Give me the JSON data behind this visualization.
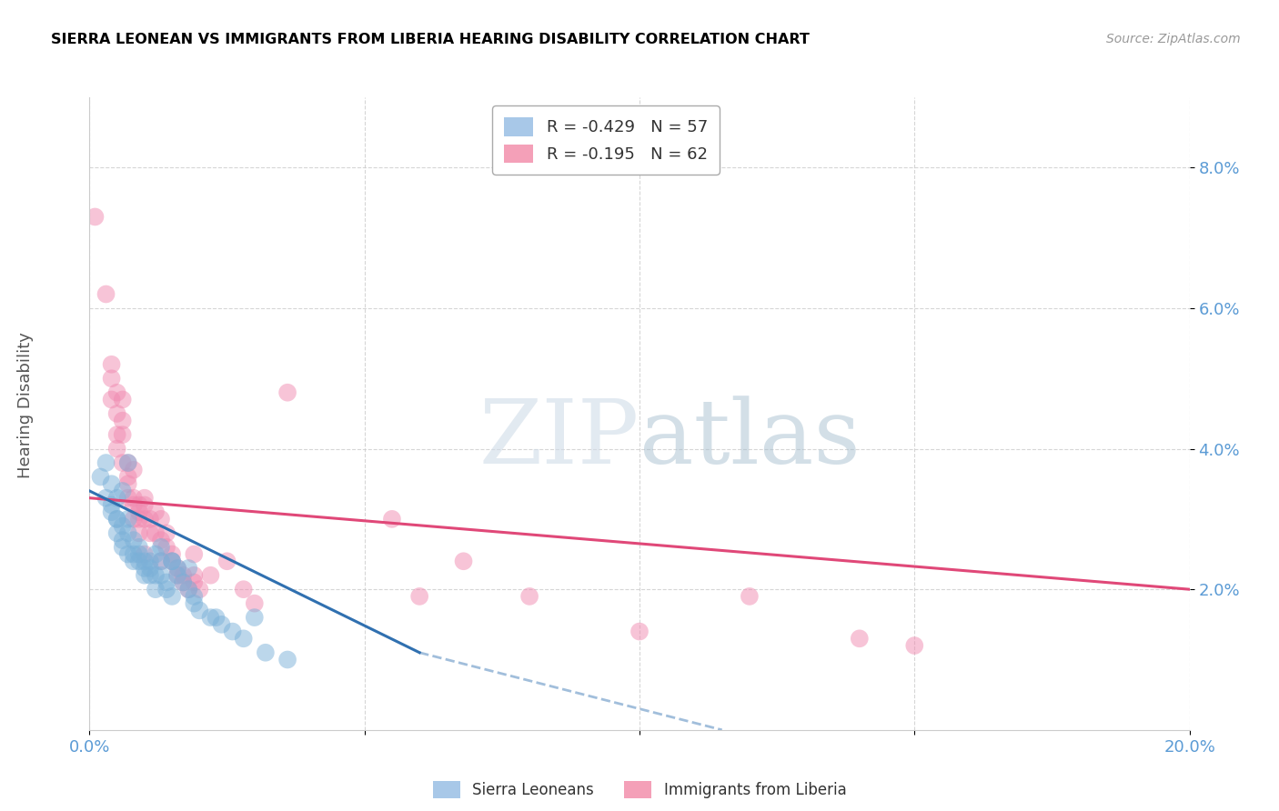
{
  "title": "SIERRA LEONEAN VS IMMIGRANTS FROM LIBERIA HEARING DISABILITY CORRELATION CHART",
  "source": "Source: ZipAtlas.com",
  "ylabel": "Hearing Disability",
  "watermark_zip": "ZIP",
  "watermark_atlas": "atlas",
  "xlim": [
    0.0,
    0.2
  ],
  "ylim": [
    0.0,
    0.09
  ],
  "yticks": [
    0.02,
    0.04,
    0.06,
    0.08
  ],
  "ytick_labels": [
    "2.0%",
    "4.0%",
    "6.0%",
    "8.0%"
  ],
  "xticks": [
    0.0,
    0.05,
    0.1,
    0.15,
    0.2
  ],
  "xtick_labels": [
    "0.0%",
    "",
    "",
    "",
    "20.0%"
  ],
  "legend_entries": [
    {
      "label": "R = -0.429   N = 57",
      "color": "#a8c8e8"
    },
    {
      "label": "R = -0.195   N = 62",
      "color": "#f4a0b8"
    }
  ],
  "legend_bottom": [
    "Sierra Leoneans",
    "Immigrants from Liberia"
  ],
  "blue_color": "#7ab0d8",
  "pink_color": "#f08ab0",
  "blue_line_color": "#3070b0",
  "pink_line_color": "#e04878",
  "blue_scatter": [
    [
      0.002,
      0.036
    ],
    [
      0.003,
      0.038
    ],
    [
      0.003,
      0.033
    ],
    [
      0.004,
      0.035
    ],
    [
      0.004,
      0.032
    ],
    [
      0.004,
      0.031
    ],
    [
      0.005,
      0.03
    ],
    [
      0.005,
      0.033
    ],
    [
      0.005,
      0.028
    ],
    [
      0.005,
      0.03
    ],
    [
      0.006,
      0.027
    ],
    [
      0.006,
      0.026
    ],
    [
      0.006,
      0.034
    ],
    [
      0.006,
      0.029
    ],
    [
      0.007,
      0.028
    ],
    [
      0.007,
      0.03
    ],
    [
      0.007,
      0.025
    ],
    [
      0.007,
      0.038
    ],
    [
      0.008,
      0.027
    ],
    [
      0.008,
      0.025
    ],
    [
      0.008,
      0.024
    ],
    [
      0.009,
      0.026
    ],
    [
      0.009,
      0.025
    ],
    [
      0.009,
      0.024
    ],
    [
      0.01,
      0.022
    ],
    [
      0.01,
      0.023
    ],
    [
      0.01,
      0.024
    ],
    [
      0.011,
      0.022
    ],
    [
      0.011,
      0.024
    ],
    [
      0.011,
      0.023
    ],
    [
      0.012,
      0.02
    ],
    [
      0.012,
      0.022
    ],
    [
      0.012,
      0.025
    ],
    [
      0.013,
      0.026
    ],
    [
      0.013,
      0.024
    ],
    [
      0.013,
      0.022
    ],
    [
      0.014,
      0.021
    ],
    [
      0.014,
      0.02
    ],
    [
      0.015,
      0.024
    ],
    [
      0.015,
      0.019
    ],
    [
      0.015,
      0.024
    ],
    [
      0.016,
      0.023
    ],
    [
      0.016,
      0.022
    ],
    [
      0.017,
      0.021
    ],
    [
      0.018,
      0.023
    ],
    [
      0.018,
      0.02
    ],
    [
      0.019,
      0.019
    ],
    [
      0.019,
      0.018
    ],
    [
      0.02,
      0.017
    ],
    [
      0.022,
      0.016
    ],
    [
      0.023,
      0.016
    ],
    [
      0.024,
      0.015
    ],
    [
      0.026,
      0.014
    ],
    [
      0.028,
      0.013
    ],
    [
      0.03,
      0.016
    ],
    [
      0.032,
      0.011
    ],
    [
      0.036,
      0.01
    ]
  ],
  "pink_scatter": [
    [
      0.001,
      0.073
    ],
    [
      0.003,
      0.062
    ],
    [
      0.004,
      0.05
    ],
    [
      0.004,
      0.047
    ],
    [
      0.004,
      0.052
    ],
    [
      0.005,
      0.048
    ],
    [
      0.005,
      0.045
    ],
    [
      0.005,
      0.042
    ],
    [
      0.005,
      0.04
    ],
    [
      0.006,
      0.047
    ],
    [
      0.006,
      0.038
    ],
    [
      0.006,
      0.044
    ],
    [
      0.006,
      0.042
    ],
    [
      0.007,
      0.038
    ],
    [
      0.007,
      0.036
    ],
    [
      0.007,
      0.033
    ],
    [
      0.007,
      0.035
    ],
    [
      0.008,
      0.037
    ],
    [
      0.008,
      0.033
    ],
    [
      0.008,
      0.03
    ],
    [
      0.008,
      0.032
    ],
    [
      0.009,
      0.032
    ],
    [
      0.009,
      0.03
    ],
    [
      0.009,
      0.028
    ],
    [
      0.009,
      0.031
    ],
    [
      0.01,
      0.033
    ],
    [
      0.01,
      0.03
    ],
    [
      0.01,
      0.032
    ],
    [
      0.01,
      0.025
    ],
    [
      0.011,
      0.03
    ],
    [
      0.011,
      0.028
    ],
    [
      0.012,
      0.028
    ],
    [
      0.012,
      0.031
    ],
    [
      0.013,
      0.03
    ],
    [
      0.013,
      0.024
    ],
    [
      0.013,
      0.027
    ],
    [
      0.014,
      0.028
    ],
    [
      0.014,
      0.026
    ],
    [
      0.015,
      0.024
    ],
    [
      0.015,
      0.025
    ],
    [
      0.016,
      0.022
    ],
    [
      0.016,
      0.023
    ],
    [
      0.017,
      0.022
    ],
    [
      0.017,
      0.021
    ],
    [
      0.018,
      0.02
    ],
    [
      0.019,
      0.022
    ],
    [
      0.019,
      0.025
    ],
    [
      0.019,
      0.021
    ],
    [
      0.02,
      0.02
    ],
    [
      0.022,
      0.022
    ],
    [
      0.025,
      0.024
    ],
    [
      0.028,
      0.02
    ],
    [
      0.03,
      0.018
    ],
    [
      0.036,
      0.048
    ],
    [
      0.055,
      0.03
    ],
    [
      0.06,
      0.019
    ],
    [
      0.068,
      0.024
    ],
    [
      0.08,
      0.019
    ],
    [
      0.1,
      0.014
    ],
    [
      0.12,
      0.019
    ],
    [
      0.14,
      0.013
    ],
    [
      0.15,
      0.012
    ]
  ],
  "blue_line": {
    "x_start": 0.0,
    "x_end": 0.06,
    "y_start": 0.034,
    "y_end": 0.011
  },
  "blue_line_dash": {
    "x_start": 0.06,
    "x_end": 0.115,
    "y_start": 0.011,
    "y_end": 0.0
  },
  "pink_line": {
    "x_start": 0.0,
    "x_end": 0.2,
    "y_start": 0.033,
    "y_end": 0.02
  },
  "background_color": "#ffffff",
  "grid_color": "#cccccc",
  "title_color": "#000000",
  "axis_color": "#5b9bd5",
  "ylabel_color": "#555555"
}
